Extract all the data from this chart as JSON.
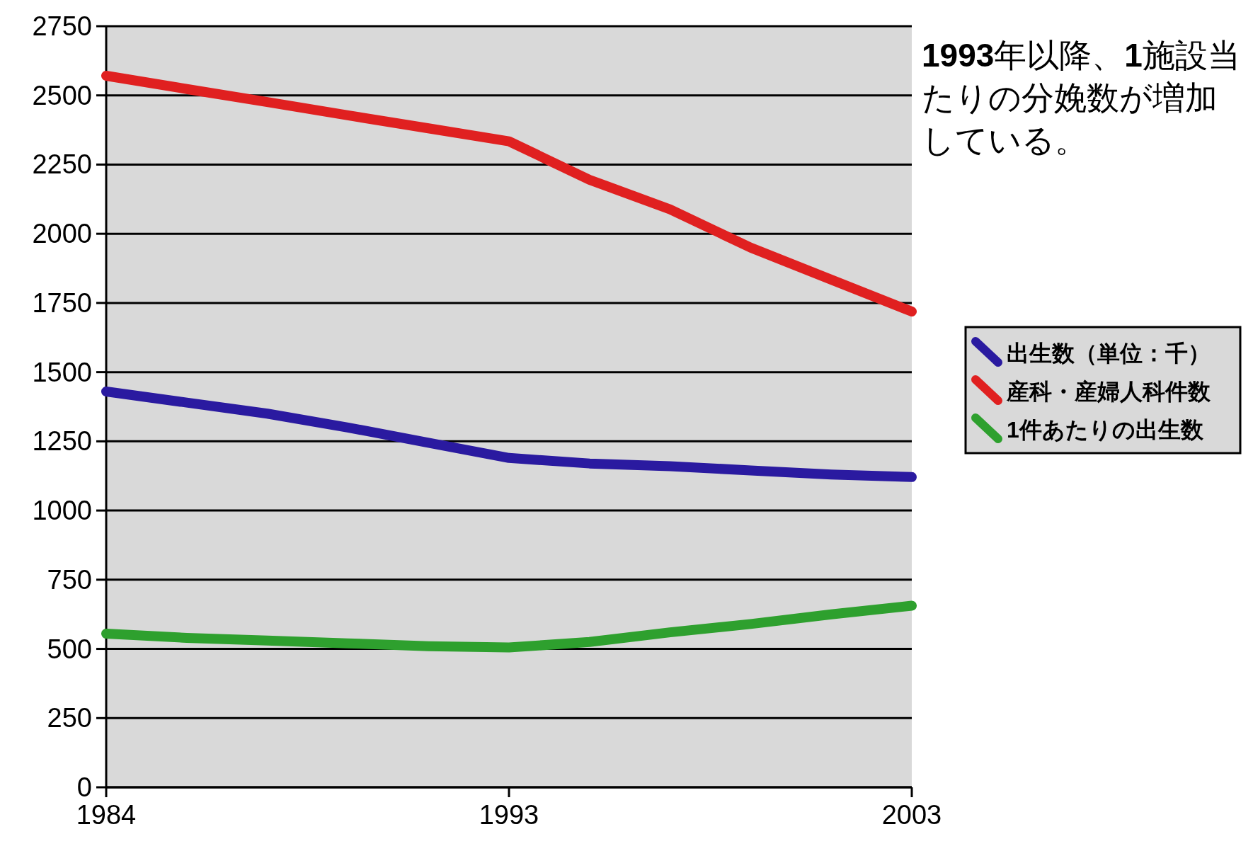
{
  "chart_data": {
    "type": "line",
    "categories": [
      "1984",
      null,
      null,
      null,
      null,
      "1993",
      null,
      null,
      null,
      null,
      "2003"
    ],
    "series": [
      {
        "name": "出生数（単位：千）",
        "color": "#2a1aa0",
        "values": [
          1430,
          1390,
          1350,
          1300,
          1245,
          1190,
          1170,
          1160,
          1145,
          1130,
          1121
        ]
      },
      {
        "name": "産科・産婦人科件数",
        "color": "#e02020",
        "values": [
          2571,
          2523,
          2476,
          2428,
          2381,
          2334,
          2195,
          2088,
          1950,
          1834,
          1719
        ]
      },
      {
        "name": "1件あたりの出生数",
        "color": "#2ea02e",
        "values": [
          555,
          540,
          530,
          520,
          510,
          505,
          525,
          560,
          590,
          625,
          656
        ]
      }
    ],
    "ylim": [
      0,
      2750
    ],
    "yticks": [
      0,
      250,
      500,
      750,
      1000,
      1250,
      1500,
      1750,
      2000,
      2250,
      2500,
      2750
    ],
    "grid": "y",
    "legend": "right",
    "marker": "none",
    "line_style": "solid",
    "annotations": [
      "**1993**年以降、**1**施設当たりの分娩数が増加している。"
    ]
  }
}
